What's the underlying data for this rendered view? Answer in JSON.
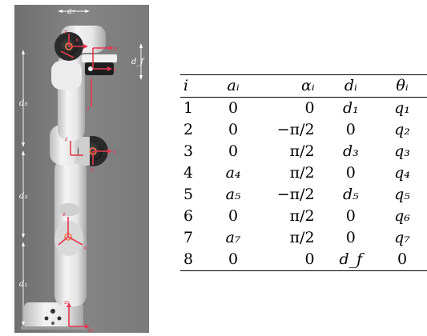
{
  "robot_figure": {
    "dimension_labels": {
      "a7": "a₇",
      "df": "d_f",
      "d5": "d₅",
      "d3": "d₃",
      "d1": "d₁"
    },
    "frame_axis_labels": {
      "x": "x",
      "y": "y",
      "z": "z",
      "z0": "z₀",
      "x0": "x₀"
    },
    "colors": {
      "background": "#7d7d7d",
      "robot_body": "#e8e8e8",
      "joint_caps": "#2b2b2b",
      "frame_axes": "#e8384f",
      "dimension_lines": "#ffffff",
      "joint_marker": "#ff7a45"
    }
  },
  "dh_table": {
    "headers": [
      "i",
      "aᵢ",
      "αᵢ",
      "dᵢ",
      "θᵢ"
    ],
    "rows": [
      [
        "1",
        "0",
        "0",
        "d₁",
        "q₁"
      ],
      [
        "2",
        "0",
        "−π/2",
        "0",
        "q₂"
      ],
      [
        "3",
        "0",
        "π/2",
        "d₃",
        "q₃"
      ],
      [
        "4",
        "a₄",
        "π/2",
        "0",
        "q₄"
      ],
      [
        "5",
        "a₅",
        "−π/2",
        "d₅",
        "q₅"
      ],
      [
        "6",
        "0",
        "π/2",
        "0",
        "q₆"
      ],
      [
        "7",
        "a₇",
        "π/2",
        "0",
        "q₇"
      ],
      [
        "8",
        "0",
        "0",
        "d_f",
        "0"
      ]
    ]
  }
}
